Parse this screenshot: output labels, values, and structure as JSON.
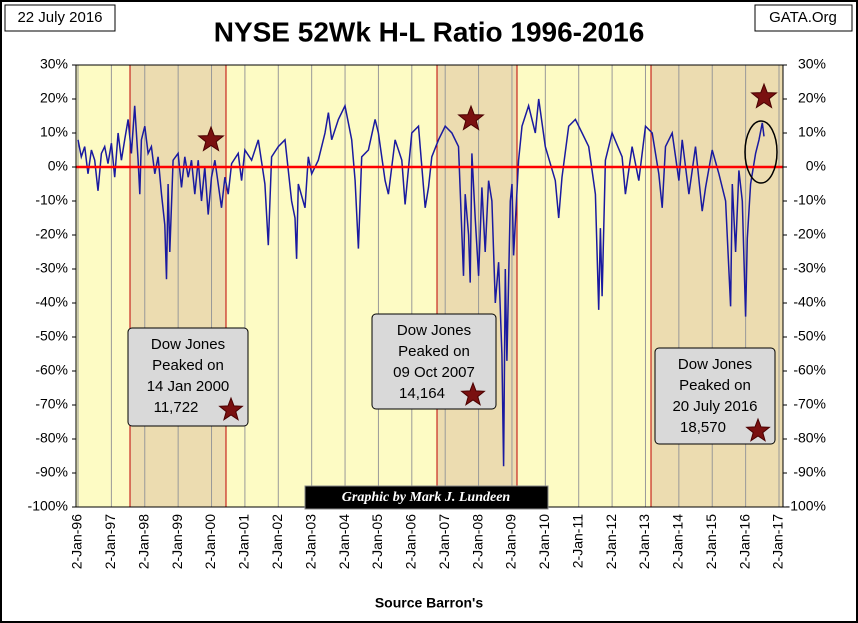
{
  "chart_data": {
    "type": "line",
    "title": "NYSE 52Wk H-L Ratio 1996-2016",
    "date_label": "22 July 2016",
    "source_site": "GATA.Org",
    "x_label": "Source Barron's",
    "credit": "Graphic by Mark J. Lundeen",
    "color": "#1a1aa0",
    "zero_line_color": "#ff0000",
    "grid": "x",
    "annotations": [
      {
        "lines": [
          "Dow Jones",
          "Peaked on",
          "14 Jan 2000",
          "11,722"
        ]
      },
      {
        "lines": [
          "Dow Jones",
          "Peaked on",
          "09 Oct 2007",
          "14,164"
        ]
      },
      {
        "lines": [
          "Dow Jones",
          "Peaked on",
          "20 July 2016",
          "18,570"
        ]
      }
    ],
    "x": [
      1996.0,
      1996.1,
      1996.2,
      1996.3,
      1996.4,
      1996.5,
      1996.6,
      1996.7,
      1996.8,
      1996.9,
      1997.0,
      1997.1,
      1997.2,
      1997.3,
      1997.4,
      1997.5,
      1997.6,
      1997.7,
      1997.8,
      1997.85,
      1997.9,
      1998.0,
      1998.1,
      1998.2,
      1998.3,
      1998.4,
      1998.5,
      1998.6,
      1998.65,
      1998.7,
      1998.75,
      1998.85,
      1999.0,
      1999.1,
      1999.2,
      1999.3,
      1999.4,
      1999.5,
      1999.6,
      1999.7,
      1999.8,
      1999.9,
      2000.0,
      2000.1,
      2000.2,
      2000.3,
      2000.4,
      2000.5,
      2000.6,
      2000.8,
      2000.9,
      2001.0,
      2001.2,
      2001.4,
      2001.6,
      2001.7,
      2001.8,
      2002.0,
      2002.2,
      2002.4,
      2002.5,
      2002.55,
      2002.6,
      2002.8,
      2002.9,
      2003.0,
      2003.2,
      2003.4,
      2003.5,
      2003.6,
      2003.8,
      2004.0,
      2004.2,
      2004.3,
      2004.4,
      2004.5,
      2004.7,
      2004.9,
      2005.0,
      2005.2,
      2005.3,
      2005.5,
      2005.7,
      2005.8,
      2006.0,
      2006.2,
      2006.4,
      2006.5,
      2006.6,
      2006.8,
      2007.0,
      2007.2,
      2007.4,
      2007.55,
      2007.6,
      2007.7,
      2007.75,
      2007.8,
      2007.9,
      2008.0,
      2008.1,
      2008.2,
      2008.3,
      2008.4,
      2008.5,
      2008.6,
      2008.7,
      2008.75,
      2008.8,
      2008.85,
      2008.95,
      2009.0,
      2009.05,
      2009.2,
      2009.3,
      2009.5,
      2009.7,
      2009.8,
      2010.0,
      2010.3,
      2010.4,
      2010.5,
      2010.7,
      2010.9,
      2011.1,
      2011.3,
      2011.5,
      2011.6,
      2011.65,
      2011.7,
      2011.8,
      2012.0,
      2012.3,
      2012.4,
      2012.6,
      2012.8,
      2013.0,
      2013.2,
      2013.4,
      2013.5,
      2013.6,
      2013.8,
      2014.0,
      2014.1,
      2014.3,
      2014.5,
      2014.7,
      2014.8,
      2015.0,
      2015.2,
      2015.4,
      2015.55,
      2015.6,
      2015.7,
      2015.8,
      2015.9,
      2016.0,
      2016.05,
      2016.15,
      2016.3,
      2016.4,
      2016.5,
      2016.55
    ],
    "values": [
      8,
      3,
      6,
      -2,
      5,
      2,
      -7,
      4,
      6,
      1,
      7,
      -3,
      10,
      2,
      8,
      14,
      4,
      18,
      2,
      -8,
      8,
      12,
      4,
      6,
      -2,
      3,
      -8,
      -17,
      -33,
      -5,
      -25,
      2,
      4,
      -6,
      3,
      -3,
      2,
      -8,
      2,
      -10,
      0,
      -14,
      -3,
      2,
      -5,
      -12,
      -3,
      -8,
      1,
      4,
      -4,
      5,
      2,
      8,
      -5,
      -23,
      3,
      6,
      8,
      -10,
      -15,
      -27,
      -5,
      -12,
      3,
      -2,
      2,
      10,
      16,
      8,
      14,
      18,
      8,
      -4,
      -24,
      3,
      5,
      14,
      10,
      -4,
      -8,
      8,
      2,
      -11,
      10,
      12,
      -12,
      -6,
      3,
      8,
      12,
      10,
      6,
      -32,
      -8,
      -20,
      -34,
      4,
      -15,
      -32,
      -6,
      -25,
      -4,
      -10,
      -40,
      -28,
      -55,
      -88,
      -30,
      -57,
      -10,
      -5,
      -26,
      2,
      12,
      18,
      10,
      20,
      6,
      -4,
      -15,
      -3,
      12,
      14,
      10,
      6,
      -8,
      -42,
      -18,
      -38,
      2,
      10,
      3,
      -8,
      6,
      -4,
      12,
      10,
      -2,
      -12,
      6,
      10,
      -4,
      8,
      -8,
      6,
      -13,
      -6,
      5,
      -2,
      -10,
      -41,
      -5,
      -25,
      -1,
      -10,
      -44,
      -21,
      -5,
      4,
      8,
      13,
      9
    ],
    "xlim": [
      1996,
      2017
    ],
    "xticks": [
      {
        "value": 1996,
        "label": "2-Jan-96"
      },
      {
        "value": 1997,
        "label": "2-Jan-97"
      },
      {
        "value": 1998,
        "label": "2-Jan-98"
      },
      {
        "value": 1999,
        "label": "2-Jan-99"
      },
      {
        "value": 2000,
        "label": "2-Jan-00"
      },
      {
        "value": 2001,
        "label": "2-Jan-01"
      },
      {
        "value": 2002,
        "label": "2-Jan-02"
      },
      {
        "value": 2003,
        "label": "2-Jan-03"
      },
      {
        "value": 2004,
        "label": "2-Jan-04"
      },
      {
        "value": 2005,
        "label": "2-Jan-05"
      },
      {
        "value": 2006,
        "label": "2-Jan-06"
      },
      {
        "value": 2007,
        "label": "2-Jan-07"
      },
      {
        "value": 2008,
        "label": "2-Jan-08"
      },
      {
        "value": 2009,
        "label": "2-Jan-09"
      },
      {
        "value": 2010,
        "label": "2-Jan-10"
      },
      {
        "value": 2011,
        "label": "2-Jan-11"
      },
      {
        "value": 2012,
        "label": "2-Jan-12"
      },
      {
        "value": 2013,
        "label": "2-Jan-13"
      },
      {
        "value": 2014,
        "label": "2-Jan-14"
      },
      {
        "value": 2015,
        "label": "2-Jan-15"
      },
      {
        "value": 2016,
        "label": "2-Jan-16"
      },
      {
        "value": 2017,
        "label": "2-Jan-17"
      }
    ],
    "ylim": [
      -100,
      30
    ],
    "yticks": [
      {
        "value": 30,
        "label": "30%"
      },
      {
        "value": 20,
        "label": "20%"
      },
      {
        "value": 10,
        "label": "10%"
      },
      {
        "value": 0,
        "label": "0%"
      },
      {
        "value": -10,
        "label": "-10%"
      },
      {
        "value": -20,
        "label": "-20%"
      },
      {
        "value": -30,
        "label": "-30%"
      },
      {
        "value": -40,
        "label": "-40%"
      },
      {
        "value": -50,
        "label": "-50%"
      },
      {
        "value": -60,
        "label": "-60%"
      },
      {
        "value": -70,
        "label": "-70%"
      },
      {
        "value": -80,
        "label": "-80%"
      },
      {
        "value": -90,
        "label": "-90%"
      },
      {
        "value": -100,
        "label": "-100%"
      }
    ],
    "y2lim": [
      -100,
      30
    ],
    "y2ticks": [
      {
        "value": 30,
        "label": "30%"
      },
      {
        "value": 20,
        "label": "20%"
      },
      {
        "value": 10,
        "label": "10%"
      },
      {
        "value": 0,
        "label": "0%"
      },
      {
        "value": -10,
        "label": "-10%"
      },
      {
        "value": -20,
        "label": "-20%"
      },
      {
        "value": -30,
        "label": "-30%"
      },
      {
        "value": -40,
        "label": "-40%"
      },
      {
        "value": -50,
        "label": "-50%"
      },
      {
        "value": -60,
        "label": "-60%"
      },
      {
        "value": -70,
        "label": "-70%"
      },
      {
        "value": -80,
        "label": "-80%"
      },
      {
        "value": -90,
        "label": "-90%"
      },
      {
        "value": -100,
        "label": "-100%"
      }
    ]
  }
}
